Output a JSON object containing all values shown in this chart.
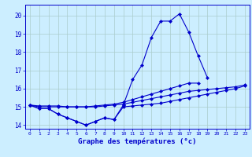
{
  "xlabel": "Graphe des températures (°c)",
  "bg_color": "#cceeff",
  "line_color": "#0000cc",
  "grid_color": "#aacccc",
  "x_hours": [
    0,
    1,
    2,
    3,
    4,
    5,
    6,
    7,
    8,
    9,
    10,
    11,
    12,
    13,
    14,
    15,
    16,
    17,
    18,
    19,
    20,
    21,
    22,
    23
  ],
  "temp_main": [
    15.1,
    14.9,
    14.9,
    14.6,
    14.4,
    14.2,
    14.0,
    14.2,
    14.4,
    14.3,
    15.1,
    16.5,
    17.3,
    18.8,
    19.7,
    19.7,
    20.1,
    19.1,
    17.8,
    16.6,
    null,
    null,
    null,
    null
  ],
  "temp_min": [
    15.1,
    14.9,
    14.9,
    14.6,
    14.4,
    14.2,
    14.0,
    14.2,
    14.4,
    14.3,
    15.0,
    15.05,
    15.1,
    15.15,
    15.2,
    15.3,
    15.4,
    15.5,
    15.6,
    15.7,
    15.8,
    15.9,
    16.0,
    16.15
  ],
  "temp_max": [
    15.1,
    15.05,
    15.05,
    15.05,
    15.0,
    15.0,
    15.0,
    15.05,
    15.1,
    15.15,
    15.25,
    15.4,
    15.55,
    15.7,
    15.85,
    16.0,
    16.15,
    16.3,
    16.3,
    null,
    null,
    null,
    null,
    null
  ],
  "temp_avg": [
    15.1,
    15.0,
    15.0,
    15.0,
    15.0,
    15.0,
    15.0,
    15.0,
    15.05,
    15.1,
    15.15,
    15.25,
    15.35,
    15.45,
    15.55,
    15.65,
    15.75,
    15.85,
    15.9,
    15.95,
    16.0,
    16.05,
    16.1,
    16.2
  ],
  "ylim": [
    13.8,
    20.6
  ],
  "yticks": [
    14,
    15,
    16,
    17,
    18,
    19,
    20
  ],
  "markersize": 2.5,
  "linewidth": 0.8
}
